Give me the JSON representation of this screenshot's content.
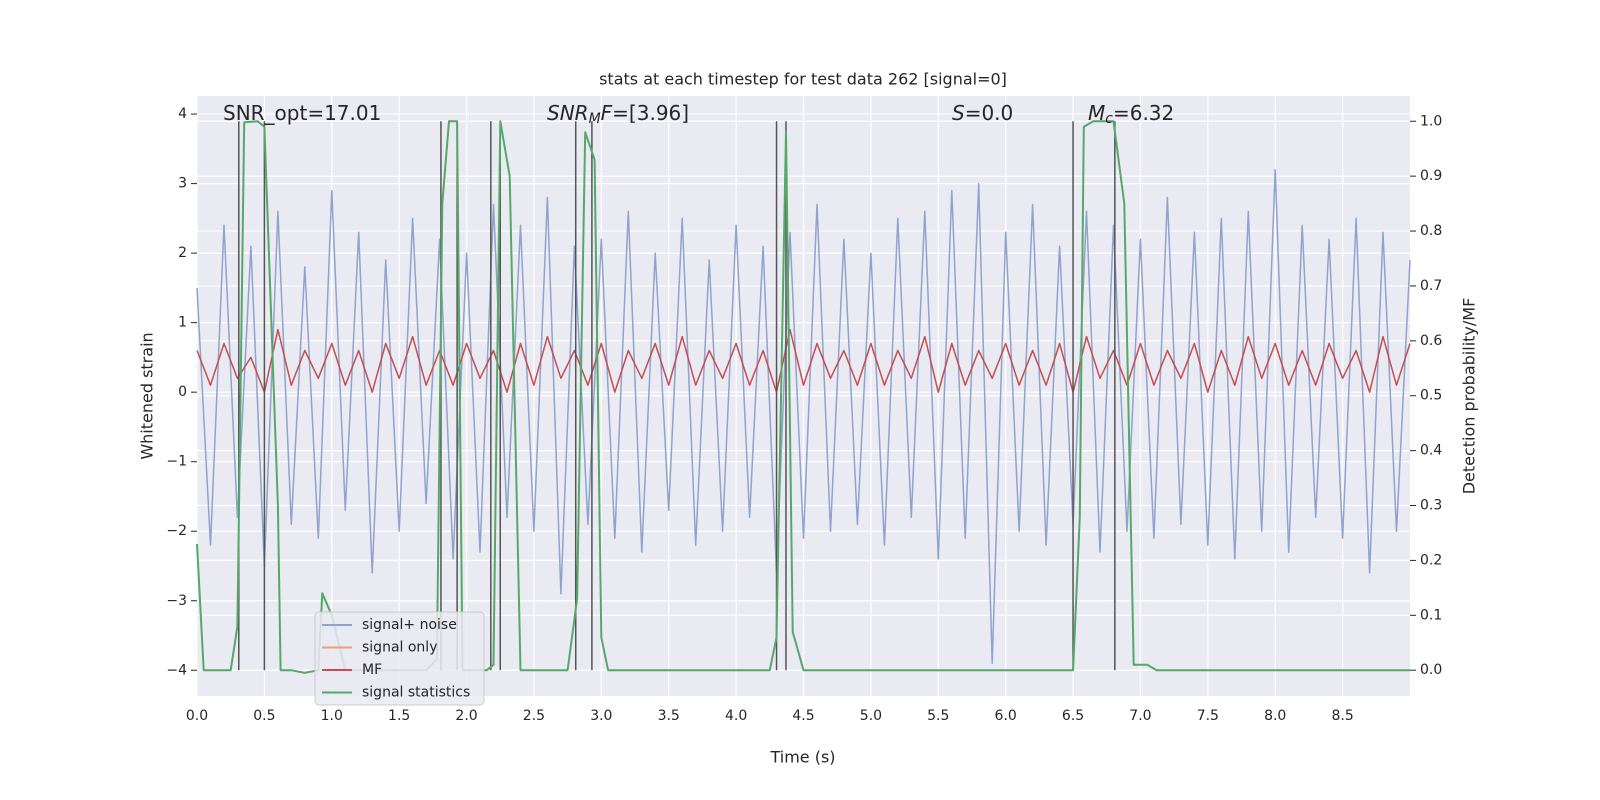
{
  "chart_data": {
    "type": "line",
    "title": "stats at each timestep for test data 262 [signal=0]",
    "xlabel": "Time (s)",
    "ylabel": "Whitened strain",
    "y2label": "Detection probability/MF",
    "xlim": [
      0,
      9.0
    ],
    "ylim": [
      -4.37,
      4.26
    ],
    "y2lim": [
      -0.047,
      1.046
    ],
    "xticks": [
      {
        "value": 0,
        "label": "0.0"
      },
      0.5,
      {
        "value": 1,
        "label": "1.0"
      },
      1.5,
      {
        "value": 2,
        "label": "2.0"
      },
      2.5,
      {
        "value": 3,
        "label": "3.0"
      },
      3.5,
      {
        "value": 4,
        "label": "4.0"
      },
      4.5,
      {
        "value": 5,
        "label": "5.0"
      },
      5.5,
      {
        "value": 6,
        "label": "6.0"
      },
      6.5,
      {
        "value": 7,
        "label": "7.0"
      },
      7.5,
      {
        "value": 8,
        "label": "8.0"
      },
      8.5
    ],
    "yticks": [
      {
        "value": -4,
        "label": "−4"
      },
      {
        "value": -3,
        "label": "−3"
      },
      {
        "value": -2,
        "label": "−2"
      },
      {
        "value": -1,
        "label": "−1"
      },
      0,
      1,
      2,
      3,
      4
    ],
    "y2ticks": [
      {
        "value": 0,
        "label": "0.0"
      },
      0.1,
      0.2,
      0.3,
      0.4,
      0.5,
      0.6,
      0.7,
      0.8,
      0.9,
      {
        "value": 1,
        "label": "1.0"
      }
    ],
    "grid": true,
    "x": [
      0,
      0.1,
      0.2,
      0.3,
      0.4,
      0.5,
      0.6,
      0.7,
      0.8,
      0.9,
      1.0,
      1.1,
      1.2,
      1.3,
      1.4,
      1.5,
      1.6,
      1.7,
      1.8,
      1.9,
      2.0,
      2.1,
      2.2,
      2.3,
      2.4,
      2.5,
      2.6,
      2.7,
      2.8,
      2.9,
      3.0,
      3.1,
      3.2,
      3.3,
      3.4,
      3.5,
      3.6,
      3.7,
      3.8,
      3.9,
      4.0,
      4.1,
      4.2,
      4.3,
      4.4,
      4.5,
      4.6,
      4.7,
      4.8,
      4.9,
      5.0,
      5.1,
      5.2,
      5.3,
      5.4,
      5.5,
      5.6,
      5.7,
      5.8,
      5.9,
      6.0,
      6.1,
      6.2,
      6.3,
      6.4,
      6.5,
      6.6,
      6.7,
      6.8,
      6.9,
      7.0,
      7.1,
      7.2,
      7.3,
      7.4,
      7.5,
      7.6,
      7.7,
      7.8,
      7.9,
      8.0,
      8.1,
      8.2,
      8.3,
      8.4,
      8.5,
      8.6,
      8.7,
      8.8,
      8.9,
      9.0
    ],
    "series": [
      {
        "name": "signal+ noise",
        "color": "#8fa3cc",
        "values": [
          1.5,
          -2.2,
          2.4,
          -1.8,
          2.1,
          -2.5,
          2.6,
          -1.9,
          1.8,
          -2.1,
          2.9,
          -1.7,
          2.3,
          -2.6,
          1.9,
          -2.0,
          2.5,
          -1.6,
          2.2,
          -2.4,
          2.0,
          -2.3,
          2.7,
          -1.8,
          2.4,
          -2.0,
          2.8,
          -2.9,
          2.1,
          -1.9,
          2.2,
          -2.1,
          2.6,
          -2.3,
          2.0,
          -1.7,
          2.5,
          -2.2,
          1.9,
          -2.0,
          2.4,
          -1.8,
          2.1,
          -2.6,
          2.3,
          -2.1,
          2.7,
          -2.0,
          2.2,
          -1.9,
          2.0,
          -2.2,
          2.5,
          -1.8,
          2.6,
          -2.4,
          2.9,
          -2.1,
          3.0,
          -3.9,
          2.3,
          -2.0,
          2.7,
          -2.2,
          2.1,
          -1.9,
          2.6,
          -2.3,
          2.4,
          -2.0,
          2.2,
          -2.1,
          2.8,
          -1.9,
          2.3,
          -2.2,
          2.5,
          -2.4,
          2.6,
          -2.0,
          3.2,
          -2.3,
          2.4,
          -1.8,
          2.2,
          -2.1,
          2.5,
          -2.6,
          2.3,
          -2.0,
          1.9
        ]
      },
      {
        "name": "signal only",
        "color": "#e8a07e"
      },
      {
        "name": "MF",
        "color": "#c44e52",
        "values": [
          0.6,
          0.1,
          0.7,
          0.2,
          0.5,
          0.0,
          0.9,
          0.1,
          0.6,
          0.2,
          0.7,
          0.1,
          0.6,
          0.0,
          0.7,
          0.2,
          0.8,
          0.1,
          0.6,
          0.1,
          0.7,
          0.2,
          0.6,
          0.0,
          0.7,
          0.1,
          0.8,
          0.2,
          0.6,
          0.1,
          0.7,
          0.0,
          0.6,
          0.2,
          0.7,
          0.1,
          0.8,
          0.1,
          0.6,
          0.2,
          0.7,
          0.1,
          0.6,
          0.0,
          0.9,
          0.1,
          0.7,
          0.2,
          0.6,
          0.1,
          0.7,
          0.1,
          0.6,
          0.2,
          0.8,
          0.0,
          0.7,
          0.1,
          0.6,
          0.2,
          0.7,
          0.1,
          0.6,
          0.1,
          0.7,
          0.0,
          0.8,
          0.2,
          0.6,
          0.1,
          0.7,
          0.1,
          0.6,
          0.2,
          0.7,
          0.0,
          0.6,
          0.1,
          0.8,
          0.2,
          0.7,
          0.1,
          0.6,
          0.1,
          0.7,
          0.2,
          0.6,
          0.0,
          0.8,
          0.1,
          0.7
        ]
      },
      {
        "name": "signal statistics",
        "color": "#55a868",
        "axis": "y2",
        "x": [
          0,
          0.05,
          0.25,
          0.3,
          0.35,
          0.45,
          0.5,
          0.6,
          0.62,
          0.7,
          0.8,
          0.9,
          0.93,
          1.0,
          1.1,
          1.7,
          1.78,
          1.82,
          1.87,
          1.93,
          1.97,
          2.05,
          2.15,
          2.2,
          2.25,
          2.32,
          2.4,
          2.75,
          2.82,
          2.88,
          2.95,
          3.0,
          3.05,
          4.25,
          4.3,
          4.37,
          4.42,
          4.5,
          6.5,
          6.55,
          6.58,
          6.65,
          6.8,
          6.88,
          6.95,
          7.05,
          7.12,
          9.0
        ],
        "values": [
          0.23,
          0.0,
          0.0,
          0.08,
          0.998,
          1.0,
          0.99,
          0.3,
          0.0,
          0.0,
          -0.005,
          0.0,
          0.14,
          0.1,
          0.0,
          0.0,
          0.02,
          0.85,
          1.0,
          1.0,
          0.0,
          0.0,
          0.0,
          0.01,
          1.0,
          0.9,
          0.0,
          0.0,
          0.13,
          0.98,
          0.93,
          0.06,
          0.0,
          0.0,
          0.06,
          0.98,
          0.07,
          0.0,
          0.0,
          0.28,
          0.99,
          1.0,
          1.0,
          0.85,
          0.01,
          0.01,
          0.0,
          0.0
        ]
      }
    ],
    "vlines": [
      0.31,
      0.5,
      1.81,
      1.93,
      2.18,
      2.25,
      2.81,
      2.93,
      4.3,
      4.37,
      6.5,
      6.81
    ],
    "annotations": [
      [
        {
          "t": "SNR_opt=17.01"
        }
      ],
      [
        {
          "t": "SNR",
          "i": true
        },
        {
          "t": "M",
          "i": true,
          "sub": true
        },
        {
          "t": "F",
          "i": true
        },
        {
          "t": "=[3.96]"
        }
      ],
      [
        {
          "t": "S",
          "i": true
        },
        {
          "t": "=0.0"
        }
      ],
      [
        {
          "t": "M",
          "i": true
        },
        {
          "t": "c",
          "i": true,
          "sub": true
        },
        {
          "t": "=6.32"
        }
      ]
    ]
  }
}
